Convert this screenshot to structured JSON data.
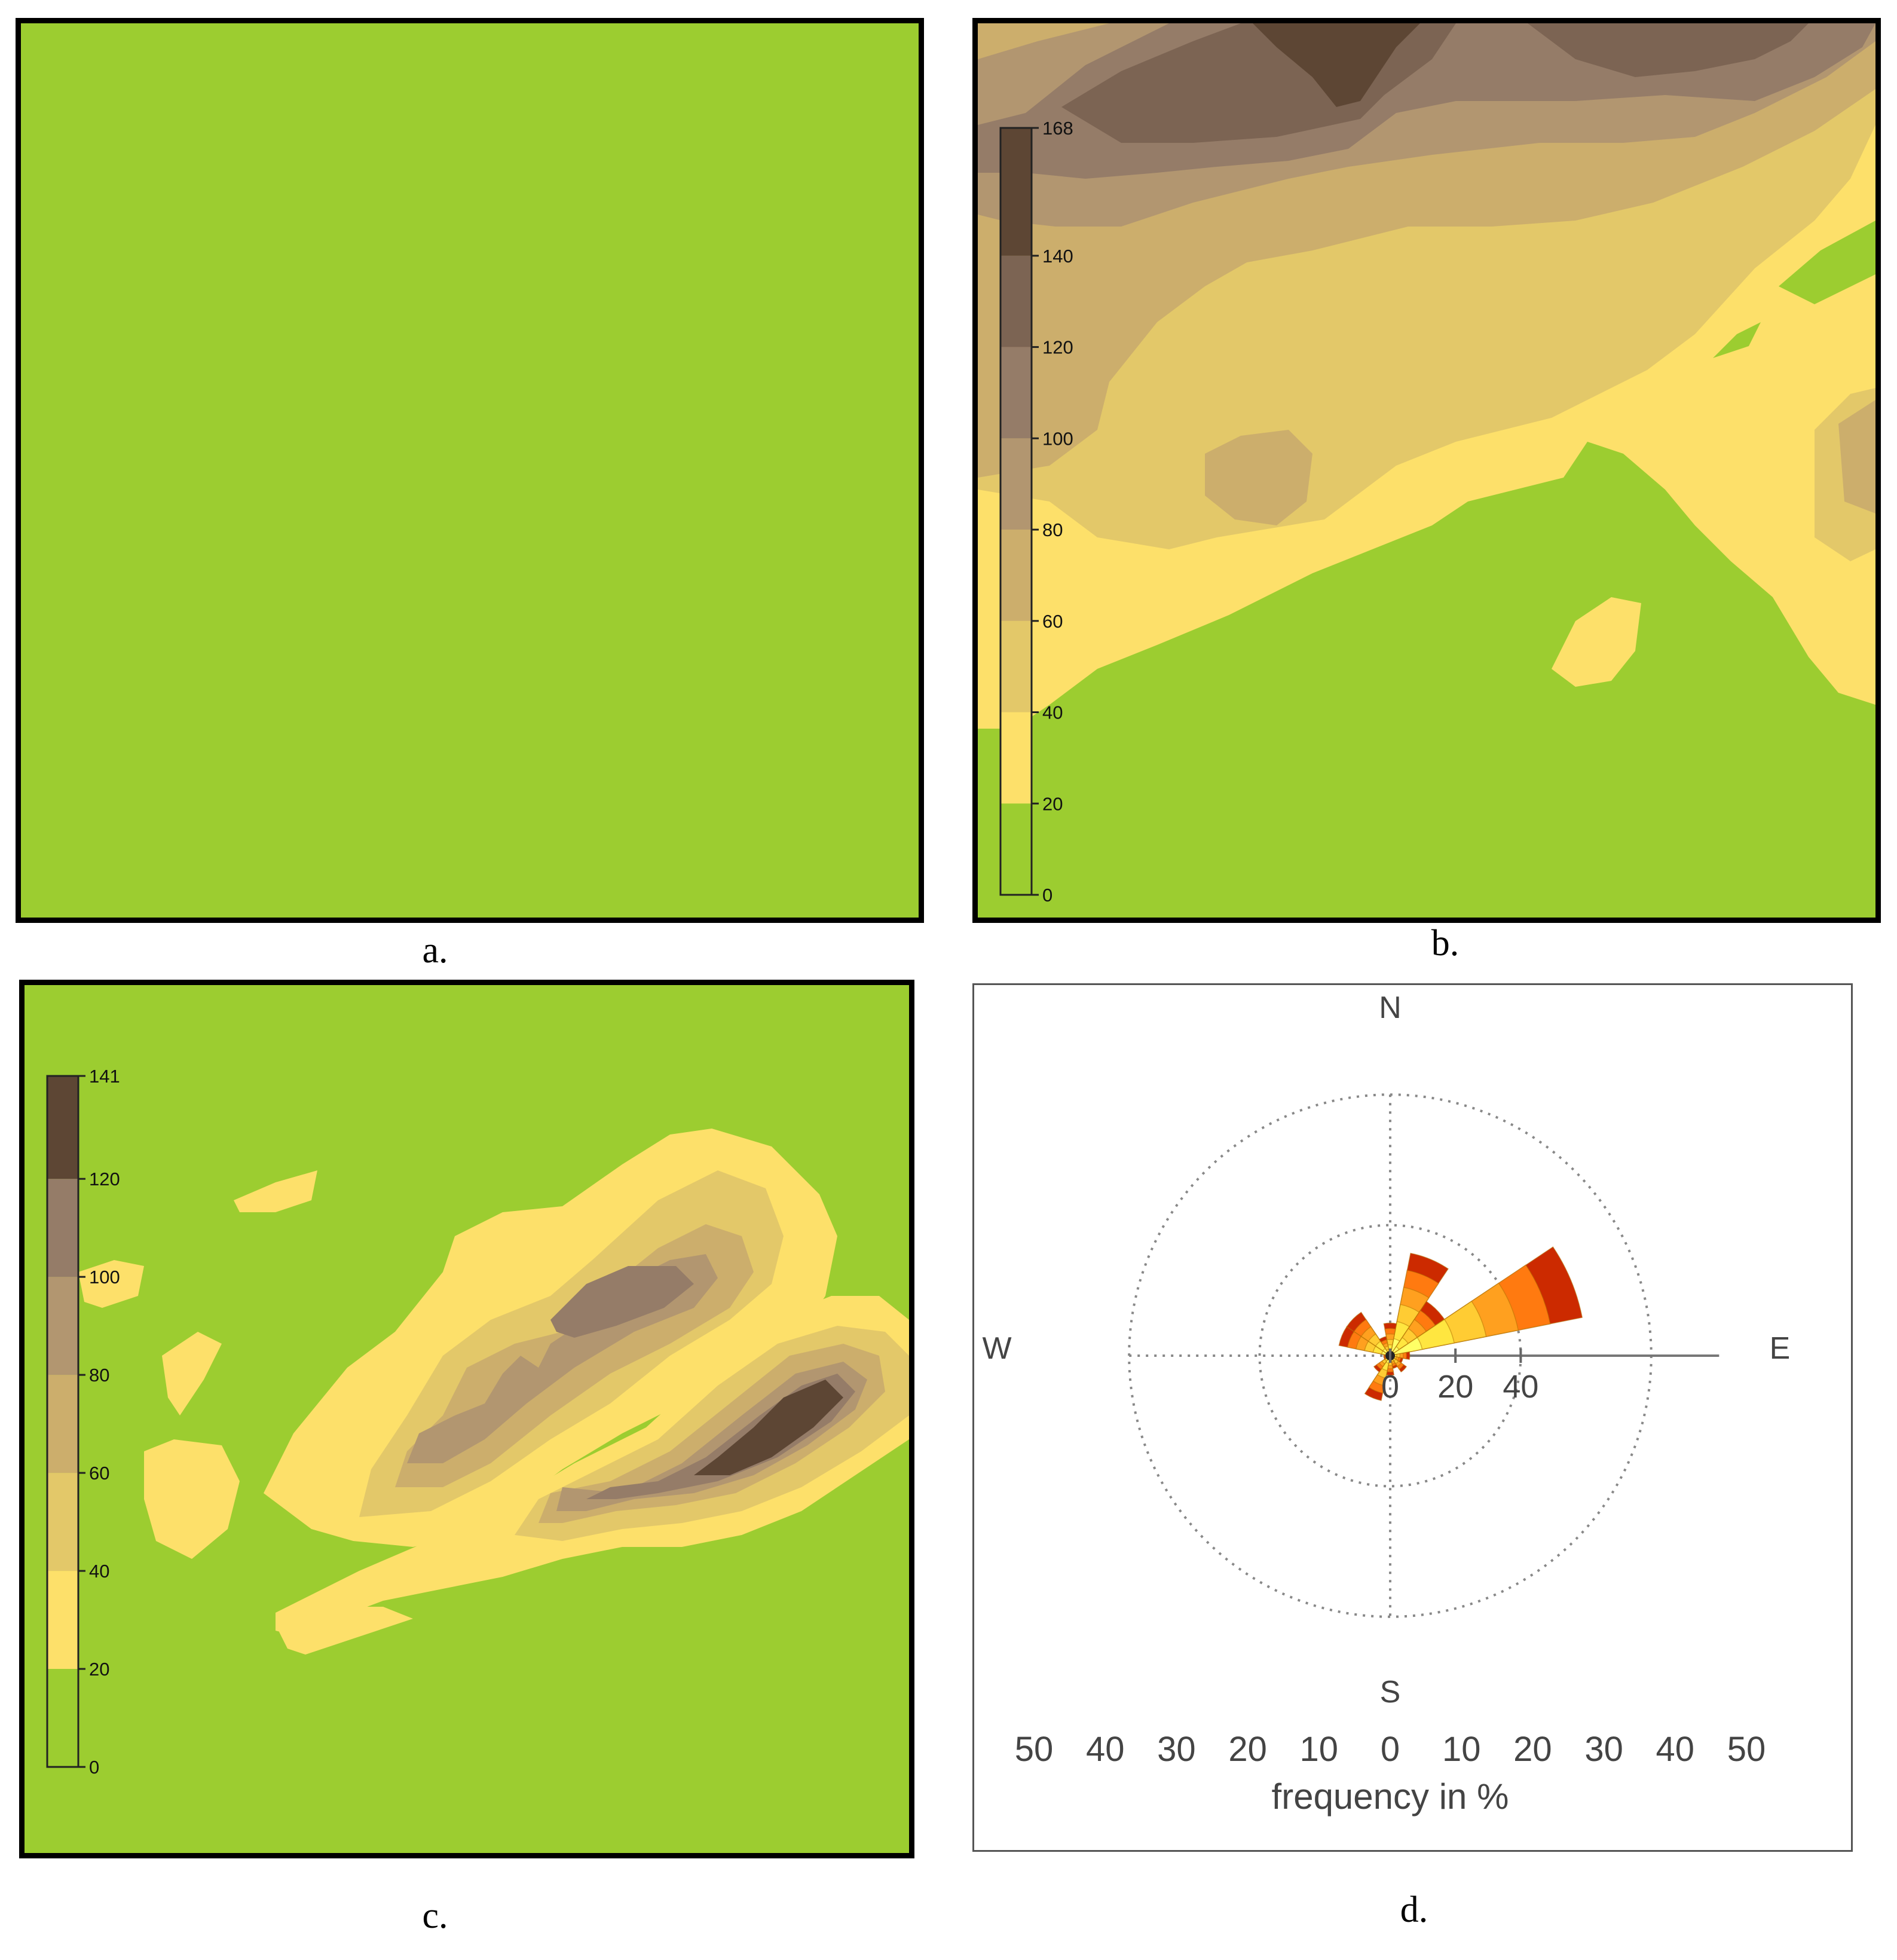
{
  "panels": {
    "a": {
      "caption": "a."
    },
    "b": {
      "caption": "b."
    },
    "c": {
      "caption": "c."
    },
    "d": {
      "caption": "d."
    }
  },
  "chart_data": [
    {
      "type": "heatmap",
      "panel": "a",
      "description_values": "uniform field, lowest class everywhere",
      "colors": [
        "#9ccd30"
      ]
    },
    {
      "type": "heatmap",
      "panel": "b",
      "colorbar": {
        "ticks": [
          "168",
          "140",
          "120",
          "100",
          "80",
          "60",
          "40",
          "20",
          "0"
        ],
        "levels": [
          0,
          20,
          40,
          60,
          80,
          100,
          120,
          140,
          168
        ],
        "colors": [
          "#9ccd30",
          "#fde06a",
          "#e3c869",
          "#ccae6c",
          "#b29670",
          "#957c68",
          "#7c6453",
          "#5d4634"
        ]
      }
    },
    {
      "type": "heatmap",
      "panel": "c",
      "colorbar": {
        "ticks": [
          "141",
          "120",
          "100",
          "80",
          "60",
          "40",
          "20",
          "0"
        ],
        "levels": [
          0,
          20,
          40,
          60,
          80,
          100,
          120,
          141
        ],
        "colors": [
          "#9ccd30",
          "#fde06a",
          "#e3c869",
          "#ccae6c",
          "#b29670",
          "#957c68",
          "#5d4634"
        ]
      }
    },
    {
      "type": "windrose",
      "panel": "d",
      "compass": {
        "n": "N",
        "e": "E",
        "s": "S",
        "w": "W"
      },
      "radial_ticks": [
        "0",
        "20",
        "40"
      ],
      "rings": [
        20,
        40
      ],
      "scale_labels": [
        "50",
        "40",
        "30",
        "20",
        "10",
        "0",
        "10",
        "20",
        "30",
        "40",
        "50"
      ],
      "xlabel": "frequency in %",
      "colors": [
        "#ffff66",
        "#ffe640",
        "#ffcc33",
        "#ffa01f",
        "#ff7a10",
        "#cc2a00"
      ],
      "petals": [
        {
          "direction_deg": 22.5,
          "frequency": 16
        },
        {
          "direction_deg": 45,
          "frequency": 10
        },
        {
          "direction_deg": 67.5,
          "frequency": 30
        },
        {
          "direction_deg": 90,
          "frequency": 3
        },
        {
          "direction_deg": 112.5,
          "frequency": 2
        },
        {
          "direction_deg": 135,
          "frequency": 3
        },
        {
          "direction_deg": 157.5,
          "frequency": 2
        },
        {
          "direction_deg": 180,
          "frequency": 3
        },
        {
          "direction_deg": 202.5,
          "frequency": 7
        },
        {
          "direction_deg": 225,
          "frequency": 3
        },
        {
          "direction_deg": 247.5,
          "frequency": 1
        },
        {
          "direction_deg": 270,
          "frequency": 1
        },
        {
          "direction_deg": 292.5,
          "frequency": 8
        },
        {
          "direction_deg": 315,
          "frequency": 8
        },
        {
          "direction_deg": 337.5,
          "frequency": 3
        },
        {
          "direction_deg": 0,
          "frequency": 5
        }
      ]
    }
  ]
}
